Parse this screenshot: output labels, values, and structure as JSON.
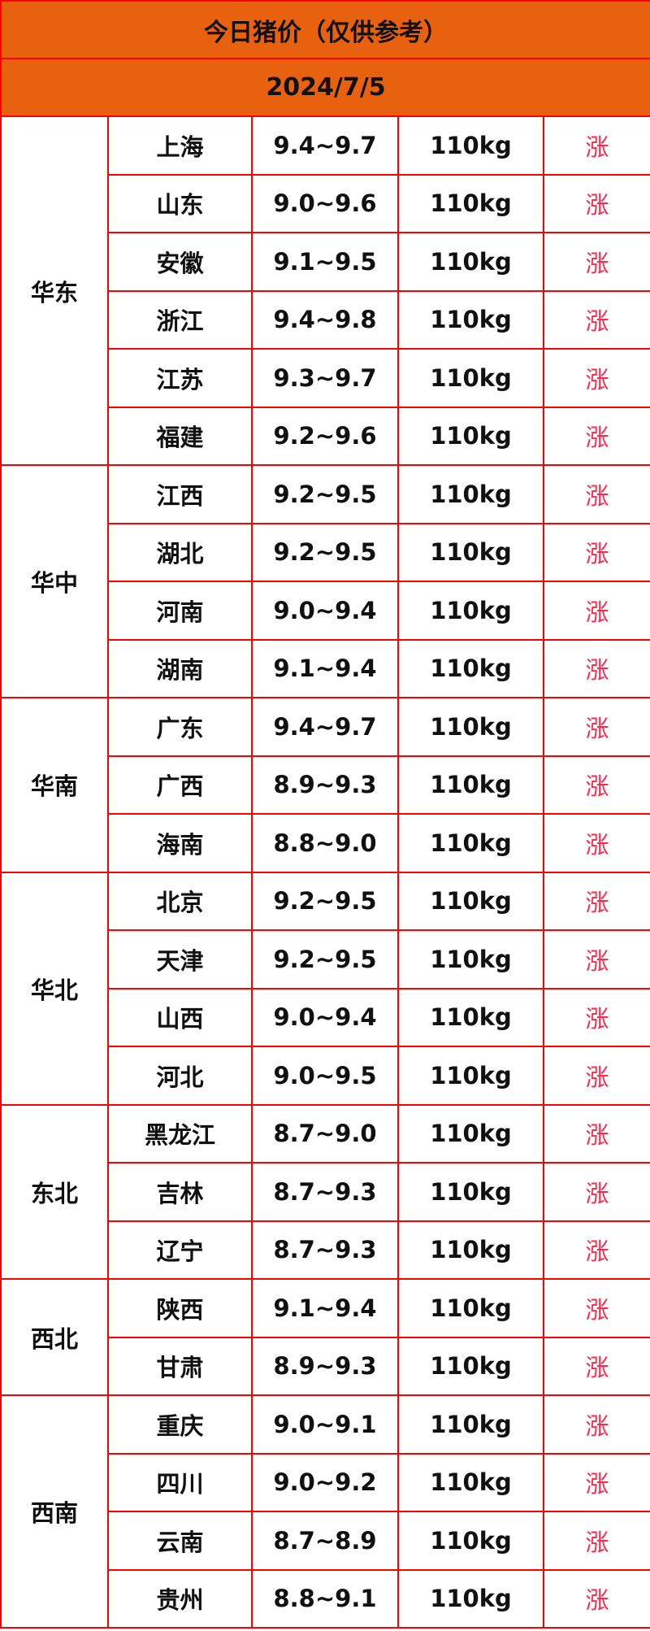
{
  "title": "今日猪价（仅供参考）",
  "date": "2024/7/5",
  "colors": {
    "header_bg": "#e8610f",
    "border": "#ff0000",
    "trend": "#ff2a4d"
  },
  "groups": [
    {
      "region": "华东",
      "rows": [
        {
          "province": "上海",
          "price": "9.4~9.7",
          "weight": "110kg",
          "trend": "涨"
        },
        {
          "province": "山东",
          "price": "9.0~9.6",
          "weight": "110kg",
          "trend": "涨"
        },
        {
          "province": "安徽",
          "price": "9.1~9.5",
          "weight": "110kg",
          "trend": "涨"
        },
        {
          "province": "浙江",
          "price": "9.4~9.8",
          "weight": "110kg",
          "trend": "涨"
        },
        {
          "province": "江苏",
          "price": "9.3~9.7",
          "weight": "110kg",
          "trend": "涨"
        },
        {
          "province": "福建",
          "price": "9.2~9.6",
          "weight": "110kg",
          "trend": "涨"
        }
      ]
    },
    {
      "region": "华中",
      "rows": [
        {
          "province": "江西",
          "price": "9.2~9.5",
          "weight": "110kg",
          "trend": "涨"
        },
        {
          "province": "湖北",
          "price": "9.2~9.5",
          "weight": "110kg",
          "trend": "涨"
        },
        {
          "province": "河南",
          "price": "9.0~9.4",
          "weight": "110kg",
          "trend": "涨"
        },
        {
          "province": "湖南",
          "price": "9.1~9.4",
          "weight": "110kg",
          "trend": "涨"
        }
      ]
    },
    {
      "region": "华南",
      "rows": [
        {
          "province": "广东",
          "price": "9.4~9.7",
          "weight": "110kg",
          "trend": "涨"
        },
        {
          "province": "广西",
          "price": "8.9~9.3",
          "weight": "110kg",
          "trend": "涨"
        },
        {
          "province": "海南",
          "price": "8.8~9.0",
          "weight": "110kg",
          "trend": "涨"
        }
      ]
    },
    {
      "region": "华北",
      "rows": [
        {
          "province": "北京",
          "price": "9.2~9.5",
          "weight": "110kg",
          "trend": "涨"
        },
        {
          "province": "天津",
          "price": "9.2~9.5",
          "weight": "110kg",
          "trend": "涨"
        },
        {
          "province": "山西",
          "price": "9.0~9.4",
          "weight": "110kg",
          "trend": "涨"
        },
        {
          "province": "河北",
          "price": "9.0~9.5",
          "weight": "110kg",
          "trend": "涨"
        }
      ]
    },
    {
      "region": "东北",
      "rows": [
        {
          "province": "黑龙江",
          "price": "8.7~9.0",
          "weight": "110kg",
          "trend": "涨"
        },
        {
          "province": "吉林",
          "price": "8.7~9.3",
          "weight": "110kg",
          "trend": "涨"
        },
        {
          "province": "辽宁",
          "price": "8.7~9.3",
          "weight": "110kg",
          "trend": "涨"
        }
      ]
    },
    {
      "region": "西北",
      "rows": [
        {
          "province": "陕西",
          "price": "9.1~9.4",
          "weight": "110kg",
          "trend": "涨"
        },
        {
          "province": "甘肃",
          "price": "8.9~9.3",
          "weight": "110kg",
          "trend": "涨"
        }
      ]
    },
    {
      "region": "西南",
      "rows": [
        {
          "province": "重庆",
          "price": "9.0~9.1",
          "weight": "110kg",
          "trend": "涨"
        },
        {
          "province": "四川",
          "price": "9.0~9.2",
          "weight": "110kg",
          "trend": "涨"
        },
        {
          "province": "云南",
          "price": "8.7~8.9",
          "weight": "110kg",
          "trend": "涨"
        },
        {
          "province": "贵州",
          "price": "8.8~9.1",
          "weight": "110kg",
          "trend": "涨"
        }
      ]
    }
  ]
}
